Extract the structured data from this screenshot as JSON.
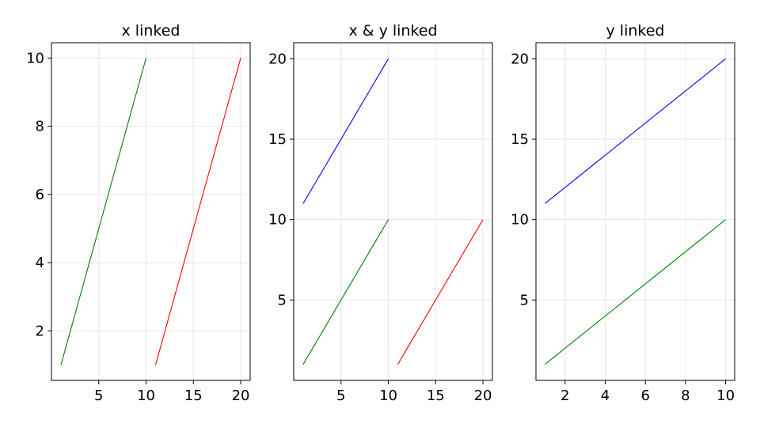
{
  "chart_data": [
    {
      "type": "line",
      "title": "x linked",
      "xlim": [
        0,
        21
      ],
      "ylim": [
        0.55,
        10.45
      ],
      "xticks": [
        5,
        10,
        15,
        20
      ],
      "yticks": [
        2,
        4,
        6,
        8,
        10
      ],
      "grid": true,
      "series": [
        {
          "color": "#008000",
          "x": [
            1,
            10
          ],
          "y": [
            1,
            10
          ]
        },
        {
          "color": "#ff0000",
          "x": [
            11,
            20
          ],
          "y": [
            1,
            10
          ]
        }
      ]
    },
    {
      "type": "line",
      "title": "x & y linked",
      "xlim": [
        0,
        21
      ],
      "ylim": [
        0,
        21
      ],
      "xticks": [
        5,
        10,
        15,
        20
      ],
      "yticks": [
        5,
        10,
        15,
        20
      ],
      "grid": true,
      "series": [
        {
          "color": "#0000ff",
          "x": [
            1,
            10
          ],
          "y": [
            11,
            20
          ]
        },
        {
          "color": "#008000",
          "x": [
            1,
            10
          ],
          "y": [
            1,
            10
          ]
        },
        {
          "color": "#ff0000",
          "x": [
            11,
            20
          ],
          "y": [
            1,
            10
          ]
        }
      ]
    },
    {
      "type": "line",
      "title": "y linked",
      "xlim": [
        0.55,
        10.45
      ],
      "ylim": [
        0,
        21
      ],
      "xticks": [
        2,
        4,
        6,
        8,
        10
      ],
      "yticks": [
        5,
        10,
        15,
        20
      ],
      "grid": true,
      "series": [
        {
          "color": "#0000ff",
          "x": [
            1,
            10
          ],
          "y": [
            11,
            20
          ]
        },
        {
          "color": "#008000",
          "x": [
            1,
            10
          ],
          "y": [
            1,
            10
          ]
        }
      ]
    }
  ]
}
